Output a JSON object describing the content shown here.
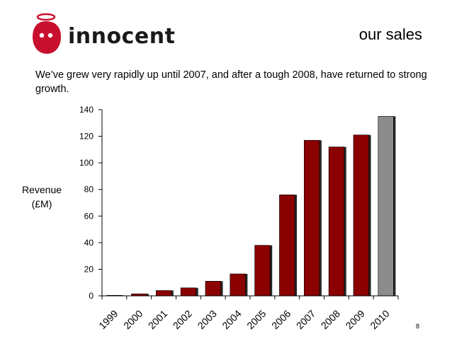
{
  "header": {
    "logo_text": "innocent",
    "title": "our sales"
  },
  "subtitle": "We’ve grew very rapidly up until 2007, and after a tough 2008, have returned to strong growth.",
  "page_number": "8",
  "colors": {
    "bar_actual": "#8b0000",
    "bar_latest": "#8c8c8c",
    "logo_red": "#c8102e"
  },
  "chart_data": {
    "type": "bar",
    "categories": [
      "1999",
      "2000",
      "2001",
      "2002",
      "2003",
      "2004",
      "2005",
      "2006",
      "2007",
      "2008",
      "2009",
      "2010"
    ],
    "values": [
      0.4,
      1.5,
      4,
      6,
      11,
      16.5,
      38,
      76,
      117,
      112,
      121,
      135
    ],
    "highlight_last": true,
    "title": "",
    "xlabel": "",
    "ylabel": "Revenue (£M)",
    "ylabel_lines": [
      "Revenue",
      "(£M)"
    ],
    "ylim": [
      0,
      140
    ],
    "yticks": [
      0,
      20,
      40,
      60,
      80,
      100,
      120,
      140
    ],
    "grid": false,
    "legend": "none"
  }
}
